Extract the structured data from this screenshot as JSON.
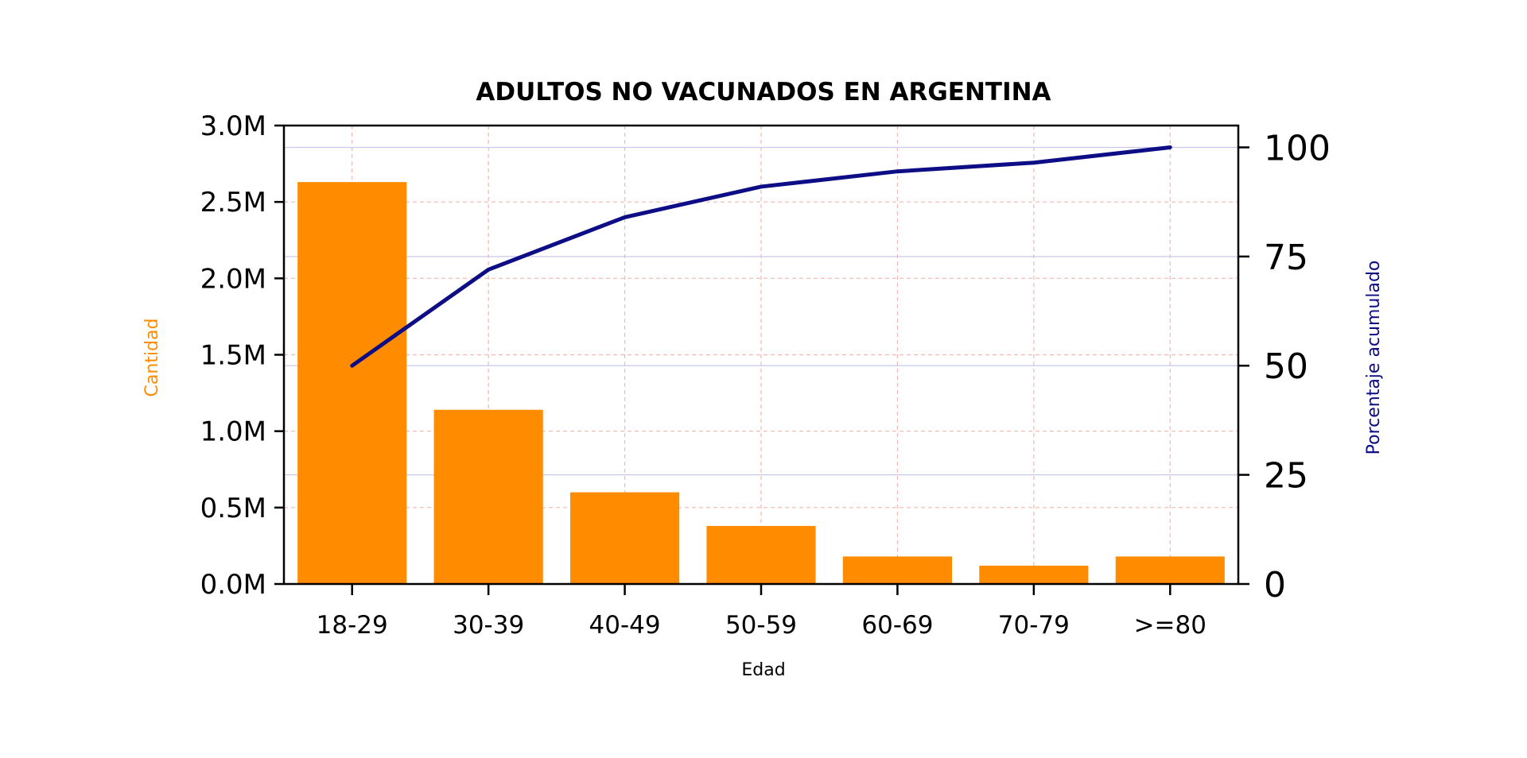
{
  "chart_data": {
    "type": "bar",
    "title": "ADULTOS NO VACUNADOS EN ARGENTINA",
    "xlabel": "Edad",
    "ylabel": "Cantidad",
    "y2label": "Porcentaje acumulado",
    "categories": [
      "18-29",
      "30-39",
      "40-49",
      "50-59",
      "60-69",
      "70-79",
      ">=80"
    ],
    "series": [
      {
        "type": "bar",
        "axis": "left",
        "color": "#ff8c00",
        "values": [
          2630000,
          1140000,
          600000,
          380000,
          180000,
          120000,
          180000
        ]
      },
      {
        "type": "line",
        "axis": "right",
        "color": "#0d0d85",
        "values": [
          50,
          72,
          84,
          91,
          94.5,
          96.5,
          100
        ]
      }
    ],
    "ylim": [
      0,
      3000000
    ],
    "y_ticks": [
      0,
      500000,
      1000000,
      1500000,
      2000000,
      2500000,
      3000000
    ],
    "y_tick_labels": [
      "0.0M",
      "0.5M",
      "1.0M",
      "1.5M",
      "2.0M",
      "2.5M",
      "3.0M"
    ],
    "y2lim": [
      0,
      105
    ],
    "y2_ticks": [
      0,
      25,
      50,
      75,
      100
    ],
    "y2_tick_labels": [
      "0",
      "25",
      "50",
      "75",
      "100"
    ],
    "grid": true,
    "colors": {
      "bar": "#ff8c00",
      "line": "#0d0d85",
      "ylabel": "#ff8c00",
      "y2label": "#0d0d85",
      "grid_left": "#f2b8b0",
      "grid_right": "#c8c8ee"
    }
  }
}
